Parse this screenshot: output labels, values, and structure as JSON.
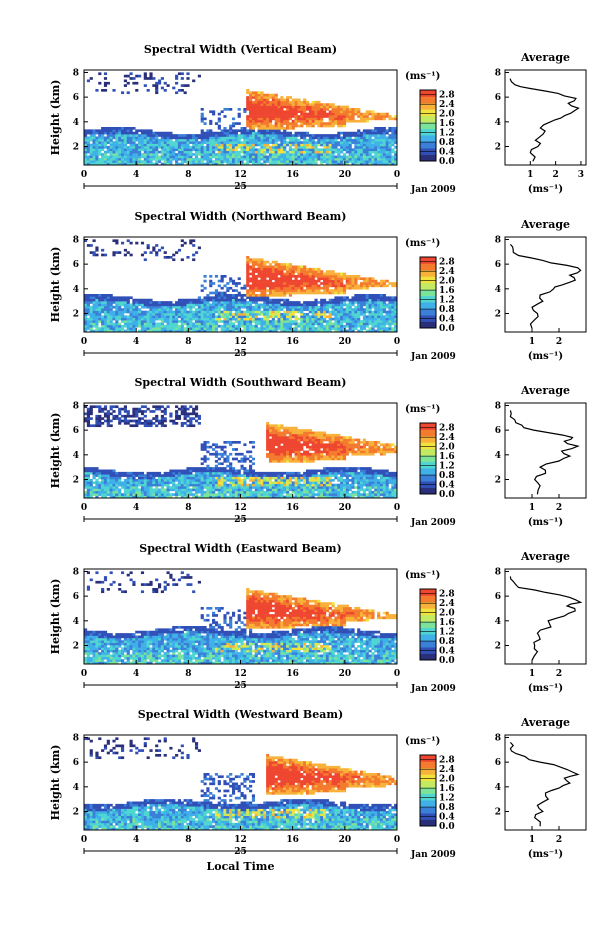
{
  "figure": {
    "xlabel": "Local Time",
    "date_label": "Jan 2009",
    "day_label": "25"
  },
  "colors": {
    "scale": [
      "#2a2f7a",
      "#3050b8",
      "#3a7fd8",
      "#3fb0e8",
      "#4fd6d0",
      "#7be39a",
      "#c3ea62",
      "#f2e23e",
      "#f8b23a",
      "#f47a2e",
      "#ee4630"
    ]
  },
  "chart_data": [
    {
      "type": "heatmap",
      "title": "Spectral Width (Vertical Beam)",
      "ylabel": "Height (km)",
      "xlabel": "",
      "x_ticks": [
        "0",
        "4",
        "8",
        "12",
        "16",
        "20",
        "0"
      ],
      "xlim": [
        0,
        24
      ],
      "y_ticks": [
        "2",
        "4",
        "6",
        "8"
      ],
      "ylim": [
        0.5,
        8.2
      ],
      "colorbar": {
        "unit": "(ms⁻¹)",
        "ticks": [
          "0.0",
          "0.4",
          "0.8",
          "1.2",
          "1.6",
          "2.0",
          "2.4",
          "2.8"
        ],
        "range": [
          0,
          3.0
        ]
      },
      "average_profile": {
        "title": "Average",
        "xlabel": "(ms⁻¹)",
        "x_ticks": [
          "1",
          "2",
          "3"
        ],
        "xlim": [
          0,
          3.2
        ],
        "y_ticks": [
          "2",
          "4",
          "6",
          "8"
        ],
        "ylim": [
          0.5,
          8.2
        ],
        "points": [
          [
            1.1,
            0.8
          ],
          [
            1.0,
            1.5
          ],
          [
            1.3,
            2.0
          ],
          [
            1.2,
            2.5
          ],
          [
            1.5,
            3.0
          ],
          [
            1.4,
            3.5
          ],
          [
            1.8,
            4.0
          ],
          [
            2.2,
            4.3
          ],
          [
            2.6,
            4.7
          ],
          [
            2.9,
            5.1
          ],
          [
            2.5,
            5.5
          ],
          [
            2.8,
            5.9
          ],
          [
            2.1,
            6.3
          ],
          [
            1.0,
            6.7
          ],
          [
            0.4,
            7.0
          ],
          [
            0.2,
            7.5
          ]
        ]
      }
    },
    {
      "type": "heatmap",
      "title": "Spectral Width (Northward Beam)",
      "ylabel": "Height (km)",
      "xlabel": "",
      "x_ticks": [
        "0",
        "4",
        "8",
        "12",
        "16",
        "20",
        "0"
      ],
      "xlim": [
        0,
        24
      ],
      "y_ticks": [
        "2",
        "4",
        "6",
        "8"
      ],
      "ylim": [
        0.5,
        8.2
      ],
      "colorbar": {
        "unit": "(ms⁻¹)",
        "ticks": [
          "0.0",
          "0.4",
          "0.8",
          "1.2",
          "1.6",
          "2.0",
          "2.4",
          "2.8"
        ],
        "range": [
          0,
          3.0
        ]
      },
      "average_profile": {
        "title": "Average",
        "xlabel": "(ms⁻¹)",
        "x_ticks": [
          "1",
          "2"
        ],
        "xlim": [
          0,
          3.0
        ],
        "y_ticks": [
          "2",
          "4",
          "6",
          "8"
        ],
        "ylim": [
          0.5,
          8.2
        ],
        "points": [
          [
            1.0,
            0.8
          ],
          [
            1.1,
            1.5
          ],
          [
            1.2,
            2.0
          ],
          [
            1.0,
            2.5
          ],
          [
            1.4,
            3.0
          ],
          [
            1.3,
            3.5
          ],
          [
            1.8,
            4.0
          ],
          [
            2.1,
            4.3
          ],
          [
            2.6,
            4.7
          ],
          [
            2.4,
            5.1
          ],
          [
            2.8,
            5.5
          ],
          [
            2.3,
            5.9
          ],
          [
            1.4,
            6.3
          ],
          [
            0.5,
            6.7
          ],
          [
            0.3,
            7.2
          ],
          [
            0.2,
            7.6
          ]
        ]
      }
    },
    {
      "type": "heatmap",
      "title": "Spectral Width (Southward Beam)",
      "ylabel": "Height (km)",
      "xlabel": "",
      "x_ticks": [
        "0",
        "4",
        "8",
        "12",
        "16",
        "20",
        "0"
      ],
      "xlim": [
        0,
        24
      ],
      "y_ticks": [
        "2",
        "4",
        "6",
        "8"
      ],
      "ylim": [
        0.5,
        8.2
      ],
      "colorbar": {
        "unit": "(ms⁻¹)",
        "ticks": [
          "0.0",
          "0.4",
          "0.8",
          "1.2",
          "1.6",
          "2.0",
          "2.4",
          "2.8"
        ],
        "range": [
          0,
          3.0
        ]
      },
      "average_profile": {
        "title": "Average",
        "xlabel": "(ms⁻¹)",
        "x_ticks": [
          "1",
          "2"
        ],
        "xlim": [
          0,
          3.0
        ],
        "y_ticks": [
          "2",
          "4",
          "6",
          "8"
        ],
        "ylim": [
          0.5,
          8.2
        ],
        "points": [
          [
            1.2,
            0.8
          ],
          [
            1.3,
            1.5
          ],
          [
            1.1,
            2.0
          ],
          [
            1.5,
            2.5
          ],
          [
            1.3,
            3.0
          ],
          [
            2.0,
            3.5
          ],
          [
            2.4,
            3.9
          ],
          [
            2.1,
            4.3
          ],
          [
            2.7,
            4.7
          ],
          [
            2.2,
            5.1
          ],
          [
            2.5,
            5.4
          ],
          [
            1.6,
            5.8
          ],
          [
            0.7,
            6.2
          ],
          [
            0.4,
            6.6
          ],
          [
            0.2,
            7.1
          ],
          [
            0.2,
            7.6
          ]
        ]
      }
    },
    {
      "type": "heatmap",
      "title": "Spectral Width (Eastward Beam)",
      "ylabel": "Height (km)",
      "xlabel": "",
      "x_ticks": [
        "0",
        "4",
        "8",
        "12",
        "16",
        "20",
        "0"
      ],
      "xlim": [
        0,
        24
      ],
      "y_ticks": [
        "2",
        "4",
        "6",
        "8"
      ],
      "ylim": [
        0.5,
        8.2
      ],
      "colorbar": {
        "unit": "(ms⁻¹)",
        "ticks": [
          "0.0",
          "0.4",
          "0.8",
          "1.2",
          "1.6",
          "2.0",
          "2.4",
          "2.8"
        ],
        "range": [
          0,
          3.0
        ]
      },
      "average_profile": {
        "title": "Average",
        "xlabel": "(ms⁻¹)",
        "x_ticks": [
          "1",
          "2"
        ],
        "xlim": [
          0,
          3.0
        ],
        "y_ticks": [
          "2",
          "4",
          "6",
          "8"
        ],
        "ylim": [
          0.5,
          8.2
        ],
        "points": [
          [
            1.0,
            0.8
          ],
          [
            1.2,
            1.5
          ],
          [
            1.1,
            2.0
          ],
          [
            1.3,
            2.5
          ],
          [
            1.2,
            3.0
          ],
          [
            1.7,
            3.5
          ],
          [
            1.6,
            4.0
          ],
          [
            2.2,
            4.4
          ],
          [
            2.6,
            4.8
          ],
          [
            2.3,
            5.2
          ],
          [
            2.8,
            5.5
          ],
          [
            2.4,
            5.9
          ],
          [
            1.5,
            6.3
          ],
          [
            0.5,
            6.7
          ],
          [
            0.3,
            7.2
          ],
          [
            0.2,
            7.6
          ]
        ]
      }
    },
    {
      "type": "heatmap",
      "title": "Spectral Width (Westward Beam)",
      "ylabel": "Height (km)",
      "xlabel": "Local Time",
      "x_ticks": [
        "0",
        "4",
        "8",
        "12",
        "16",
        "20",
        "0"
      ],
      "xlim": [
        0,
        24
      ],
      "y_ticks": [
        "2",
        "4",
        "6",
        "8"
      ],
      "ylim": [
        0.5,
        8.2
      ],
      "colorbar": {
        "unit": "(ms⁻¹)",
        "ticks": [
          "0.0",
          "0.4",
          "0.8",
          "1.2",
          "1.6",
          "2.0",
          "2.4",
          "2.8"
        ],
        "range": [
          0,
          3.0
        ]
      },
      "average_profile": {
        "title": "Average",
        "xlabel": "(ms⁻¹)",
        "x_ticks": [
          "1",
          "2"
        ],
        "xlim": [
          0,
          3.0
        ],
        "y_ticks": [
          "2",
          "4",
          "6",
          "8"
        ],
        "ylim": [
          0.5,
          8.2
        ],
        "points": [
          [
            1.3,
            0.8
          ],
          [
            1.1,
            1.5
          ],
          [
            1.4,
            2.0
          ],
          [
            1.2,
            2.5
          ],
          [
            1.6,
            3.0
          ],
          [
            1.5,
            3.5
          ],
          [
            2.0,
            3.9
          ],
          [
            2.4,
            4.3
          ],
          [
            2.2,
            4.7
          ],
          [
            2.7,
            5.0
          ],
          [
            2.3,
            5.4
          ],
          [
            1.8,
            5.8
          ],
          [
            0.9,
            6.2
          ],
          [
            0.4,
            6.7
          ],
          [
            0.2,
            7.1
          ],
          [
            0.2,
            7.6
          ]
        ]
      }
    }
  ]
}
